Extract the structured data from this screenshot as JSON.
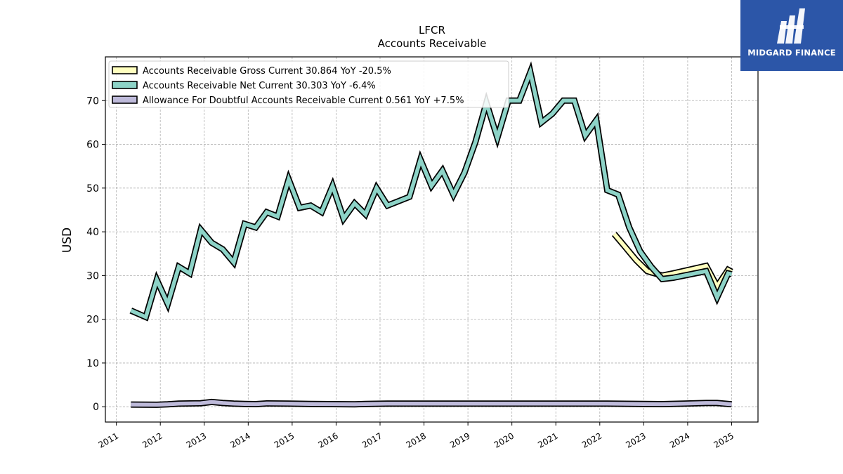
{
  "brand": {
    "name": "MIDGARD FINANCE",
    "color": "#2c56a8"
  },
  "chart_data": {
    "type": "line",
    "title": "LFCR",
    "subtitle": "Accounts Receivable",
    "ylabel": "USD",
    "xlabel": "",
    "ylim": [
      -3.5,
      80
    ],
    "xlim": [
      2010.75,
      2025.6
    ],
    "yticks": [
      0,
      10,
      20,
      30,
      40,
      50,
      60,
      70
    ],
    "xticks": [
      "2011",
      "2012",
      "2013",
      "2014",
      "2015",
      "2016",
      "2017",
      "2018",
      "2019",
      "2020",
      "2021",
      "2022",
      "2023",
      "2024",
      "2025"
    ],
    "grid": true,
    "legend_position": "upper-left",
    "series": [
      {
        "name": "Accounts Receivable Gross Current",
        "legend_label": "Accounts Receivable Gross Current  30.864 YoY -20.5%",
        "color": "#ffffbf",
        "points": [
          [
            2022.33,
            39.5
          ],
          [
            2022.58,
            36.5
          ],
          [
            2022.83,
            33.5
          ],
          [
            2023.08,
            31.0
          ],
          [
            2023.42,
            30.0
          ],
          [
            2023.67,
            30.5
          ],
          [
            2024.42,
            32.2
          ],
          [
            2024.67,
            27.5
          ],
          [
            2024.92,
            31.3
          ],
          [
            2025.0,
            30.864
          ]
        ]
      },
      {
        "name": "Accounts Receivable Net Current",
        "legend_label": "Accounts Receivable Net Current  30.303 YoY -6.4%",
        "color": "#8dd3c7",
        "points": [
          [
            2011.33,
            22.0
          ],
          [
            2011.67,
            20.5
          ],
          [
            2011.92,
            29.0
          ],
          [
            2012.17,
            23.5
          ],
          [
            2012.42,
            32.0
          ],
          [
            2012.67,
            30.5
          ],
          [
            2012.92,
            40.5
          ],
          [
            2013.17,
            37.5
          ],
          [
            2013.42,
            36.0
          ],
          [
            2013.67,
            33.0
          ],
          [
            2013.92,
            41.8
          ],
          [
            2014.17,
            41.0
          ],
          [
            2014.42,
            44.5
          ],
          [
            2014.67,
            43.5
          ],
          [
            2014.92,
            52.0
          ],
          [
            2015.17,
            45.5
          ],
          [
            2015.42,
            46.0
          ],
          [
            2015.67,
            44.5
          ],
          [
            2015.92,
            50.5
          ],
          [
            2016.17,
            43.0
          ],
          [
            2016.42,
            46.5
          ],
          [
            2016.67,
            44.0
          ],
          [
            2016.92,
            50.0
          ],
          [
            2017.17,
            46.0
          ],
          [
            2017.42,
            47.0
          ],
          [
            2017.67,
            48.0
          ],
          [
            2017.92,
            56.5
          ],
          [
            2018.17,
            50.5
          ],
          [
            2018.42,
            54.0
          ],
          [
            2018.67,
            48.5
          ],
          [
            2018.92,
            53.5
          ],
          [
            2019.17,
            60.5
          ],
          [
            2019.42,
            69.5
          ],
          [
            2019.67,
            61.5
          ],
          [
            2019.92,
            70.0
          ],
          [
            2020.17,
            70.0
          ],
          [
            2020.42,
            76.5
          ],
          [
            2020.67,
            65.0
          ],
          [
            2020.92,
            67.0
          ],
          [
            2021.17,
            70.0
          ],
          [
            2021.42,
            70.0
          ],
          [
            2021.67,
            62.0
          ],
          [
            2021.92,
            65.5
          ],
          [
            2022.17,
            49.5
          ],
          [
            2022.42,
            48.5
          ],
          [
            2022.67,
            41.0
          ],
          [
            2022.92,
            35.5
          ],
          [
            2023.17,
            32.0
          ],
          [
            2023.42,
            29.2
          ],
          [
            2023.67,
            29.5
          ],
          [
            2024.42,
            31.0
          ],
          [
            2024.67,
            25.0
          ],
          [
            2024.92,
            30.5
          ],
          [
            2025.0,
            30.303
          ]
        ]
      },
      {
        "name": "Allowance For Doubtful Accounts Receivable Current",
        "legend_label": "Allowance For Doubtful Accounts Receivable Current  0.561 YoY +7.5%",
        "color": "#bebada",
        "points": [
          [
            2011.33,
            0.5
          ],
          [
            2011.92,
            0.45
          ],
          [
            2012.17,
            0.55
          ],
          [
            2012.42,
            0.7
          ],
          [
            2012.92,
            0.8
          ],
          [
            2013.17,
            1.1
          ],
          [
            2013.42,
            0.85
          ],
          [
            2013.67,
            0.7
          ],
          [
            2013.92,
            0.65
          ],
          [
            2014.17,
            0.6
          ],
          [
            2014.42,
            0.75
          ],
          [
            2014.92,
            0.7
          ],
          [
            2015.42,
            0.65
          ],
          [
            2015.92,
            0.6
          ],
          [
            2016.42,
            0.55
          ],
          [
            2016.67,
            0.65
          ],
          [
            2017.17,
            0.7
          ],
          [
            2018.17,
            0.7
          ],
          [
            2019.17,
            0.7
          ],
          [
            2020.17,
            0.72
          ],
          [
            2021.17,
            0.72
          ],
          [
            2022.17,
            0.72
          ],
          [
            2023.42,
            0.6
          ],
          [
            2023.92,
            0.7
          ],
          [
            2024.42,
            0.85
          ],
          [
            2024.67,
            0.85
          ],
          [
            2025.0,
            0.561
          ]
        ]
      }
    ]
  }
}
